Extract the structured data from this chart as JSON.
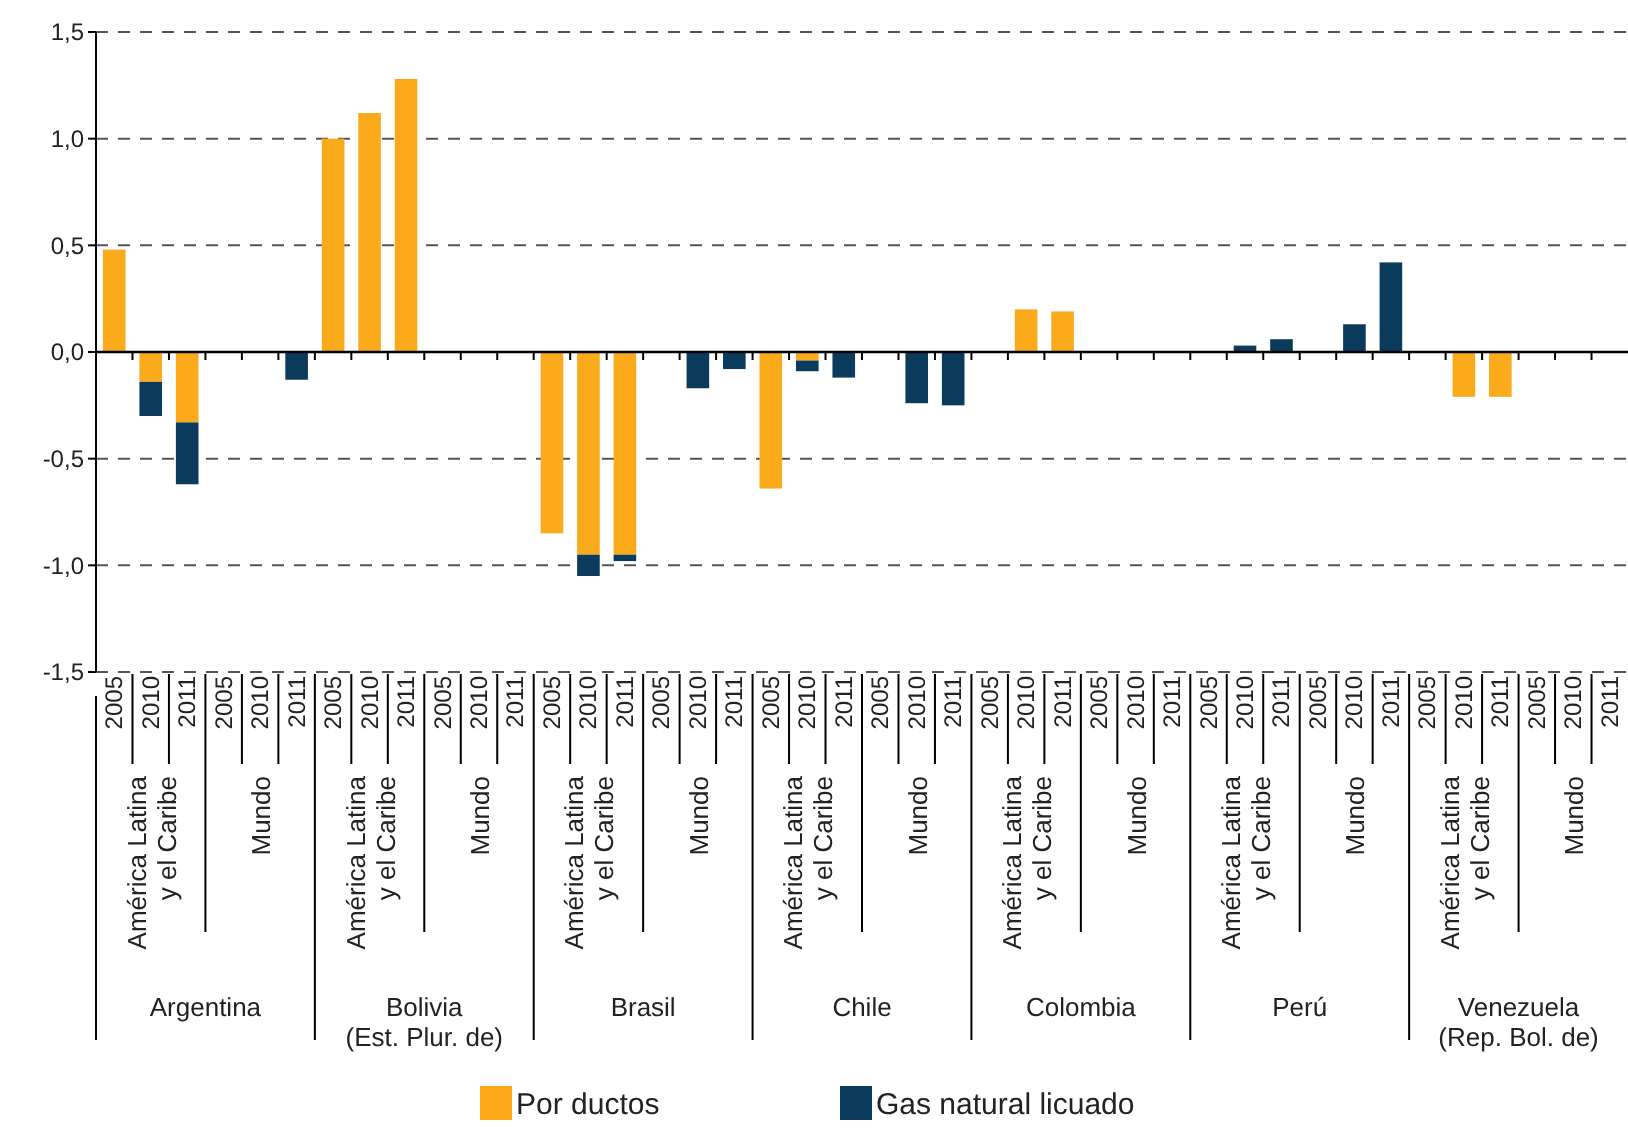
{
  "chart_data": {
    "type": "bar",
    "stacked": true,
    "categories": [
      "2005",
      "2010",
      "2011",
      "2005",
      "2010",
      "2011",
      "2005",
      "2010",
      "2011",
      "2005",
      "2010",
      "2011",
      "2005",
      "2010",
      "2011",
      "2005",
      "2010",
      "2011",
      "2005",
      "2010",
      "2011",
      "2005",
      "2010",
      "2011",
      "2005",
      "2010",
      "2011",
      "2005",
      "2010",
      "2011",
      "2005",
      "2010",
      "2011",
      "2005",
      "2010",
      "2011",
      "2005",
      "2010",
      "2011",
      "2005",
      "2010",
      "2011"
    ],
    "series": [
      {
        "name": "Por ductos",
        "color": "#fbaa1c",
        "values": [
          0.48,
          -0.14,
          -0.33,
          null,
          null,
          null,
          1.0,
          1.12,
          1.28,
          null,
          null,
          null,
          -0.85,
          -0.95,
          -0.95,
          null,
          null,
          null,
          -0.64,
          -0.04,
          null,
          null,
          null,
          null,
          null,
          0.2,
          0.19,
          null,
          null,
          null,
          null,
          null,
          null,
          null,
          null,
          null,
          null,
          -0.21,
          -0.21,
          null,
          null,
          null
        ]
      },
      {
        "name": "Gas natural licuado",
        "color": "#0a3a5c",
        "values": [
          null,
          -0.16,
          -0.29,
          null,
          null,
          -0.13,
          null,
          null,
          null,
          null,
          null,
          null,
          null,
          -0.1,
          -0.03,
          null,
          -0.17,
          -0.08,
          null,
          -0.05,
          -0.12,
          null,
          -0.24,
          -0.25,
          null,
          null,
          null,
          null,
          null,
          null,
          null,
          0.03,
          0.06,
          null,
          0.13,
          0.42,
          null,
          null,
          null,
          null,
          null,
          null
        ]
      }
    ],
    "ylim": [
      -1.5,
      1.5
    ],
    "yticks": [
      {
        "value": -1.5,
        "label": "-1,5"
      },
      {
        "value": -1.0,
        "label": "-1,0"
      },
      {
        "value": -0.5,
        "label": "-0,5"
      },
      {
        "value": 0,
        "label": "0,0"
      },
      {
        "value": 0.5,
        "label": "0,5"
      },
      {
        "value": 1.0,
        "label": "1,0"
      },
      {
        "value": 1.5,
        "label": "1,5"
      }
    ],
    "grid": "y",
    "legend": "bottom",
    "annotations": [
      "América Latina\ny el Caribe",
      "Mundo",
      "América Latina\ny el Caribe",
      "Mundo",
      "América Latina\ny el Caribe",
      "Mundo",
      "América Latina\ny el Caribe",
      "Mundo",
      "América Latina\ny el Caribe",
      "Mundo",
      "América Latina\ny el Caribe",
      "Mundo",
      "América Latina\ny el Caribe",
      "Mundo",
      "Argentina",
      "Bolivia\n(Est. Plur. de)",
      "Brasil",
      "Chile",
      "Colombia",
      "Perú",
      "Venezuela\n(Rep. Bol. de)"
    ]
  }
}
